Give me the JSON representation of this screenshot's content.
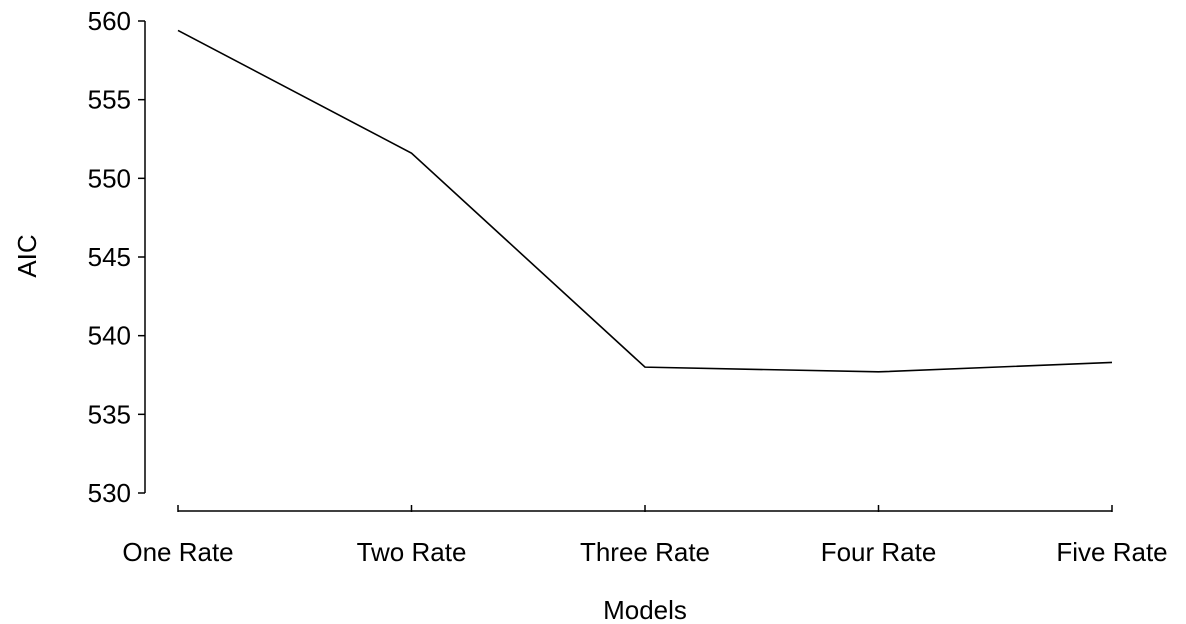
{
  "chart_data": {
    "type": "line",
    "title": "",
    "xlabel": "Models",
    "ylabel": "AIC",
    "categories": [
      "One Rate",
      "Two Rate",
      "Three Rate",
      "Four Rate",
      "Five Rate"
    ],
    "series": [
      {
        "values": [
          559.4,
          551.6,
          538.0,
          537.7,
          538.3
        ]
      }
    ],
    "ylim": [
      530,
      560
    ],
    "yticks": [
      530,
      535,
      540,
      545,
      550,
      555,
      560
    ],
    "grid": false,
    "legend": "none",
    "colors": {
      "line": "#000000",
      "axis": "#000000"
    }
  }
}
